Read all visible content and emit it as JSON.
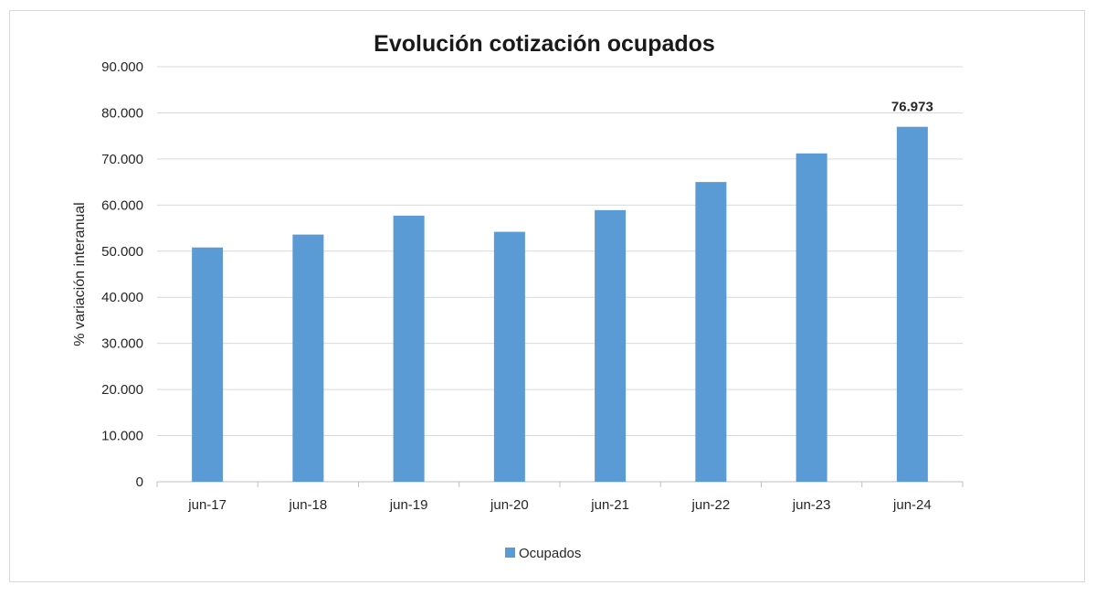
{
  "chart_data": {
    "type": "bar",
    "title": "Evolución cotización ocupados",
    "ylabel": "% variación interanual",
    "xlabel": "",
    "ylim": [
      0,
      90000
    ],
    "ytick_values": [
      0,
      10000,
      20000,
      30000,
      40000,
      50000,
      60000,
      70000,
      80000,
      90000
    ],
    "ytick_labels": [
      "0",
      "10.000",
      "20.000",
      "30.000",
      "40.000",
      "50.000",
      "60.000",
      "70.000",
      "80.000",
      "90.000"
    ],
    "categories": [
      "jun-17",
      "jun-18",
      "jun-19",
      "jun-20",
      "jun-21",
      "jun-22",
      "jun-23",
      "jun-24"
    ],
    "series": [
      {
        "name": "Ocupados",
        "color": "#5b9bd5",
        "values": [
          50800,
          53600,
          57700,
          54200,
          58900,
          65000,
          71200,
          76973
        ]
      }
    ],
    "data_labels": [
      {
        "index": 7,
        "text": "76.973"
      }
    ],
    "grid": true,
    "legend_position": "bottom"
  }
}
